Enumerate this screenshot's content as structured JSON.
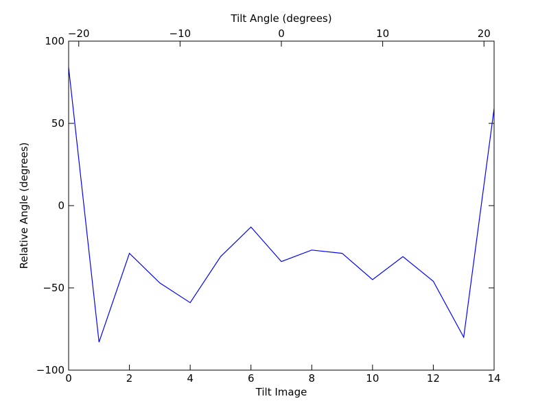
{
  "chart_data": {
    "type": "line",
    "xlabel": "Tilt Image",
    "ylabel": "Relative Angle (degrees)",
    "top_xlabel": "Tilt Angle (degrees)",
    "xlim": [
      0,
      14
    ],
    "ylim": [
      -100,
      100
    ],
    "top_xlim": [
      -21,
      21
    ],
    "x_ticks": [
      0,
      2,
      4,
      6,
      8,
      10,
      12,
      14
    ],
    "x_tick_labels": [
      "0",
      "2",
      "4",
      "6",
      "8",
      "10",
      "12",
      "14"
    ],
    "y_ticks": [
      -100,
      -50,
      0,
      50,
      100
    ],
    "y_tick_labels": [
      "−100",
      "−50",
      "0",
      "50",
      "100"
    ],
    "top_ticks": [
      -20,
      -10,
      0,
      10,
      20
    ],
    "top_tick_labels": [
      "−20",
      "−10",
      "0",
      "10",
      "20"
    ],
    "grid": false,
    "line_color": "#0000ff",
    "x": [
      0,
      1,
      2,
      3,
      4,
      5,
      6,
      7,
      8,
      9,
      10,
      11,
      12,
      13,
      14
    ],
    "values": [
      84,
      -83,
      -29,
      -47,
      -59,
      -31,
      -13,
      -34,
      -27,
      -29,
      -45,
      -31,
      -46,
      -80,
      59
    ]
  }
}
